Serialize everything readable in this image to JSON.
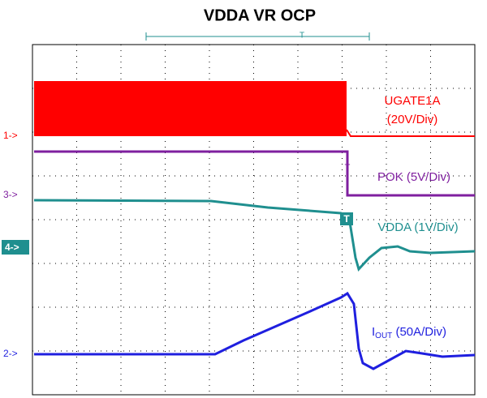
{
  "title": "VDDA VR OCP",
  "trigger_marker": "T",
  "channels": [
    {
      "marker": "1->",
      "label": "UGATE1A",
      "scale": "(20V/Div)"
    },
    {
      "marker": "3->",
      "label": "POK (5V/Div)"
    },
    {
      "marker": "4->",
      "label": "VDDA (1V/Div)"
    },
    {
      "marker": "2->",
      "label_main": "I",
      "label_sub": "OUT",
      "label_rest": " (50A/Div)"
    }
  ],
  "cursor_markers": [
    "T",
    "T"
  ]
}
